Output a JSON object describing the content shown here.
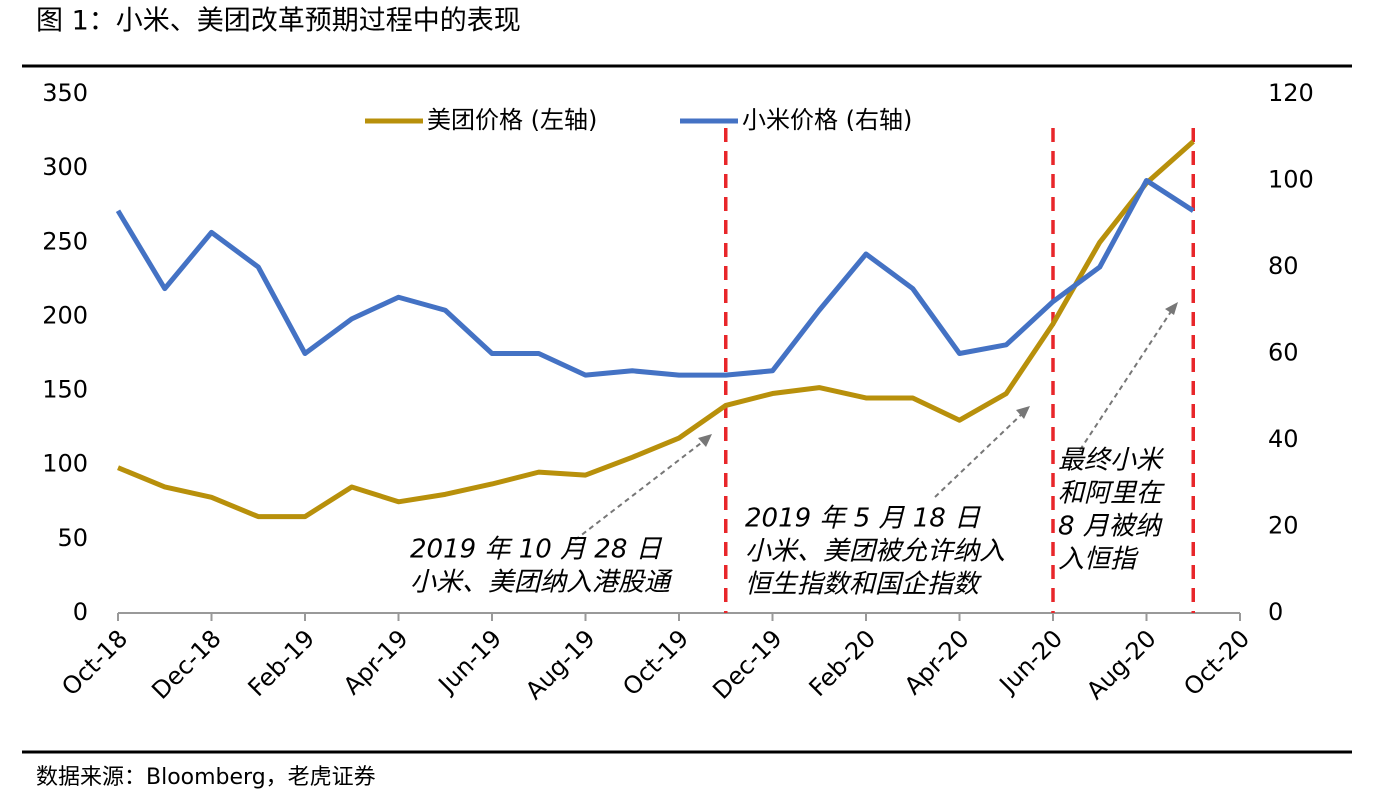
{
  "chart_data": {
    "type": "line",
    "title": "图 1：小米、美团改革预期过程中的表现",
    "source": "数据来源：Bloomberg，老虎证券",
    "x": [
      "2018-10",
      "2018-11",
      "2018-12",
      "2019-01",
      "2019-02",
      "2019-03",
      "2019-04",
      "2019-05",
      "2019-06",
      "2019-07",
      "2019-08",
      "2019-09",
      "2019-10",
      "2019-11",
      "2019-12",
      "2020-01",
      "2020-02",
      "2020-03",
      "2020-04",
      "2020-05",
      "2020-06",
      "2020-07",
      "2020-08",
      "2020-09"
    ],
    "series": [
      {
        "name": "美团价格 (左轴)",
        "color": "#b8900b",
        "axis": "y",
        "values": [
          98,
          85,
          78,
          65,
          65,
          85,
          75,
          80,
          87,
          95,
          93,
          105,
          118,
          140,
          148,
          152,
          145,
          145,
          130,
          148,
          195,
          250,
          290,
          318
        ]
      },
      {
        "name": "小米价格 (右轴)",
        "color": "#4472c4",
        "axis": "y2",
        "values": [
          93,
          75,
          88,
          80,
          60,
          68,
          73,
          70,
          60,
          60,
          55,
          56,
          55,
          55,
          56,
          70,
          83,
          75,
          60,
          62,
          72,
          80,
          100,
          93
        ]
      }
    ],
    "xlim": [
      "2018-10",
      "2020-10"
    ],
    "xticks": [
      {
        "value": "2018-10",
        "label": "Oct-18"
      },
      {
        "value": "2018-12",
        "label": "Dec-18"
      },
      {
        "value": "2019-02",
        "label": "Feb-19"
      },
      {
        "value": "2019-04",
        "label": "Apr-19"
      },
      {
        "value": "2019-06",
        "label": "Jun-19"
      },
      {
        "value": "2019-08",
        "label": "Aug-19"
      },
      {
        "value": "2019-10",
        "label": "Oct-19"
      },
      {
        "value": "2019-12",
        "label": "Dec-19"
      },
      {
        "value": "2020-02",
        "label": "Feb-20"
      },
      {
        "value": "2020-04",
        "label": "Apr-20"
      },
      {
        "value": "2020-06",
        "label": "Jun-20"
      },
      {
        "value": "2020-08",
        "label": "Aug-20"
      },
      {
        "value": "2020-10",
        "label": "Oct-20"
      }
    ],
    "ylim": [
      0,
      350
    ],
    "yticks": [
      0,
      50,
      100,
      150,
      200,
      250,
      300,
      350
    ],
    "y2lim": [
      0,
      120
    ],
    "y2ticks": [
      0,
      20,
      40,
      60,
      80,
      100,
      120
    ],
    "legend": "top",
    "vlines": [
      "2019-11",
      "2020-06",
      "2020-09"
    ],
    "annotations": [
      [
        "2019 年 10 月 28 日",
        "小米、美团纳入港股通"
      ],
      [
        "2019 年 5 月 18 日",
        "小米、美团被允许纳入",
        "恒生指数和国企指数"
      ],
      [
        "最终小米",
        "和阿里在",
        "8 月被纳",
        "入恒指"
      ]
    ]
  }
}
